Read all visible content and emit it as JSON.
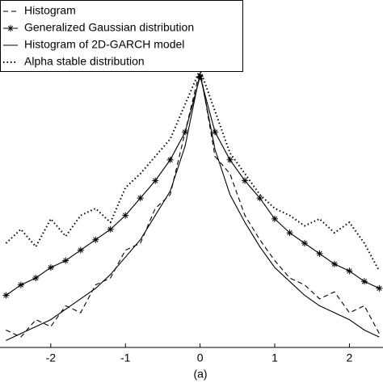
{
  "chart_data": {
    "type": "line",
    "caption": "(a)",
    "x": [
      -2.6,
      -2.4,
      -2.2,
      -2.0,
      -1.8,
      -1.6,
      -1.4,
      -1.2,
      -1.0,
      -0.8,
      -0.6,
      -0.4,
      -0.2,
      0,
      0.2,
      0.4,
      0.6,
      0.8,
      1.0,
      1.2,
      1.4,
      1.6,
      1.8,
      2.0,
      2.2,
      2.4
    ],
    "xlim": [
      -2.68,
      2.45
    ],
    "xticks": [
      -2,
      -1,
      0,
      1,
      2
    ],
    "ylim": [
      0,
      100
    ],
    "legend": "top-left",
    "series": [
      {
        "name": "Histogram",
        "color": "#000000",
        "style": "dashed",
        "values": [
          5,
          3,
          8,
          6,
          12,
          10,
          18,
          20,
          28,
          30,
          40,
          44,
          62,
          80,
          55,
          50,
          38,
          31,
          25,
          20,
          18,
          14,
          16,
          10,
          12,
          4
        ]
      },
      {
        "name": "Generalized Gaussian distribution",
        "color": "#000000",
        "style": "asterisk",
        "values": [
          15,
          18,
          20,
          23,
          25,
          28,
          31,
          34,
          38,
          43,
          48,
          54,
          62,
          78,
          62,
          54,
          48,
          43,
          37,
          33,
          30,
          27,
          24,
          22,
          19,
          17
        ]
      },
      {
        "name": "Histogram of 2D-GARCH model",
        "color": "#000000",
        "style": "solid",
        "values": [
          2,
          4,
          6,
          8,
          11,
          14,
          17,
          21,
          26,
          31,
          38,
          45,
          58,
          79,
          57,
          44,
          36,
          29,
          23,
          19,
          15,
          12,
          10,
          8,
          5,
          3
        ]
      },
      {
        "name": "Alpha stable distribution",
        "color": "#000000",
        "style": "dotted",
        "values": [
          30,
          34,
          29,
          37,
          32,
          38,
          40,
          36,
          46,
          50,
          55,
          60,
          70,
          80,
          68,
          56,
          50,
          44,
          40,
          38,
          35,
          37,
          33,
          36,
          30,
          22
        ]
      }
    ]
  }
}
